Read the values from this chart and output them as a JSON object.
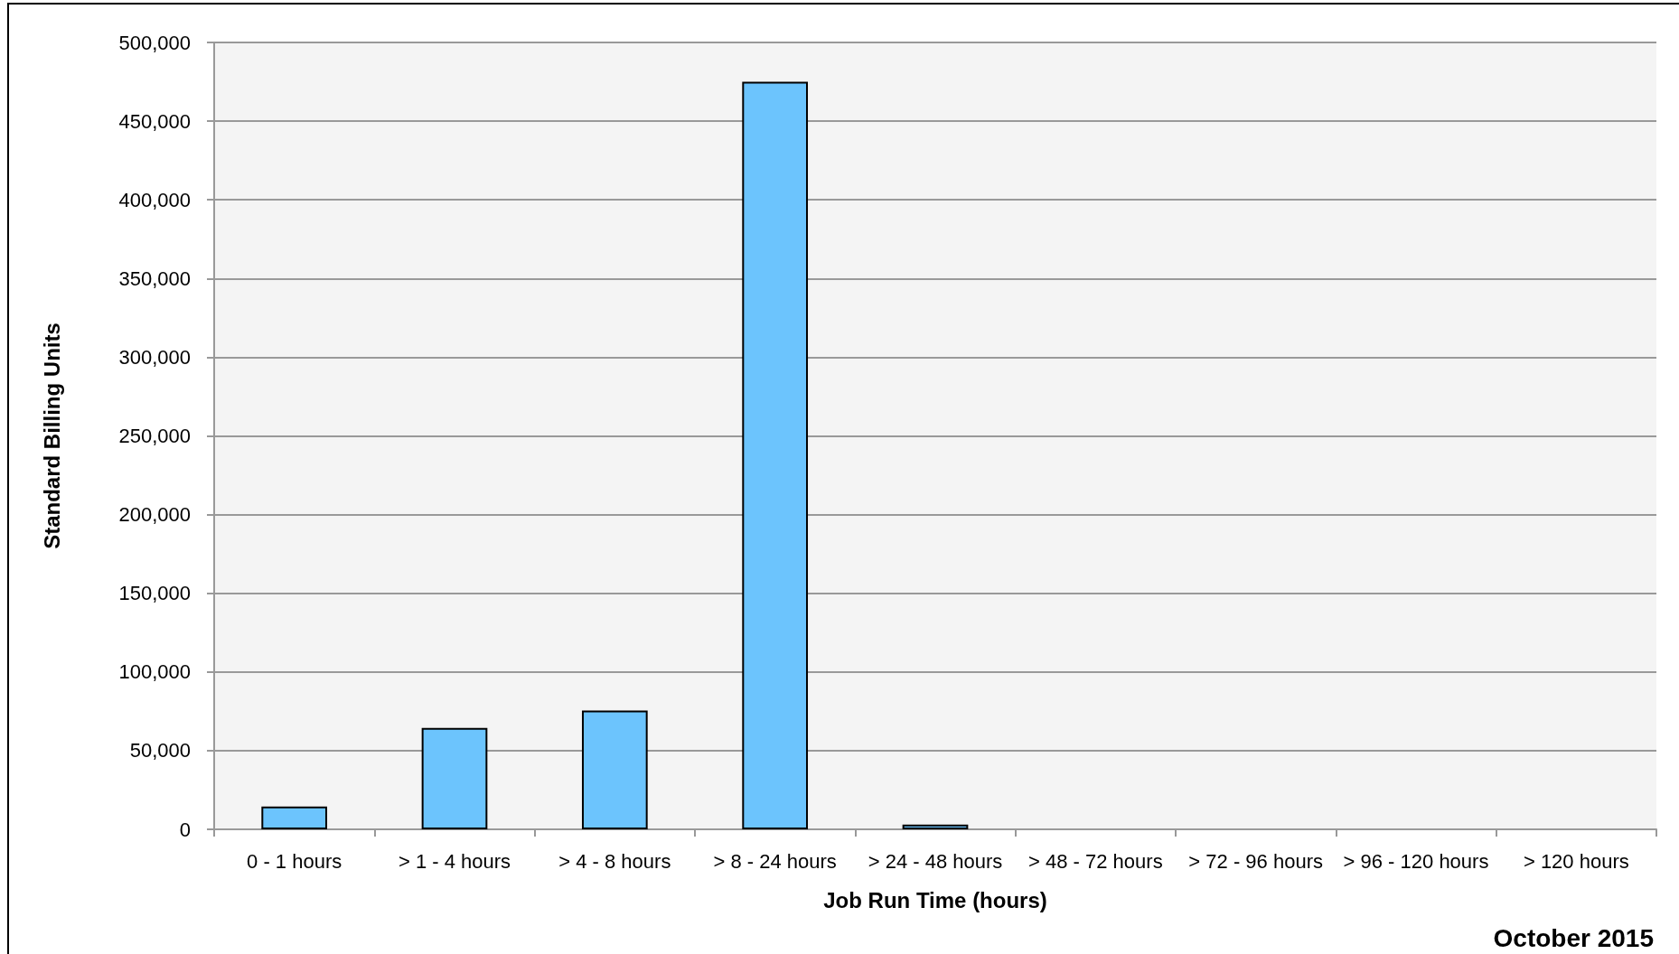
{
  "chart_data": {
    "type": "bar",
    "xlabel": "Job Run Time (hours)",
    "ylabel": "Standard Billing Units",
    "categories": [
      "0 - 1 hours",
      "> 1 - 4 hours",
      "> 4 - 8 hours",
      "> 8 - 24 hours",
      "> 24 - 48 hours",
      "> 48 - 72 hours",
      "> 72 - 96 hours",
      "> 96 - 120 hours",
      "> 120 hours"
    ],
    "values": [
      14500,
      64500,
      75500,
      475000,
      3000,
      0,
      0,
      0,
      0
    ],
    "color": "#6cc4fd",
    "ylim": [
      0,
      500000
    ],
    "yticks": [
      0,
      {
        "value": 50000,
        "label": "50,000"
      },
      {
        "value": 100000,
        "label": "100,000"
      },
      {
        "value": 150000,
        "label": "150,000"
      },
      {
        "value": 200000,
        "label": "200,000"
      },
      {
        "value": 250000,
        "label": "250,000"
      },
      {
        "value": 300000,
        "label": "300,000"
      },
      {
        "value": 350000,
        "label": "350,000"
      },
      {
        "value": 400000,
        "label": "400,000"
      },
      {
        "value": 450000,
        "label": "450,000"
      },
      {
        "value": 500000,
        "label": "500,000"
      }
    ],
    "grid": "y",
    "annotations": [
      "October 2015"
    ]
  }
}
